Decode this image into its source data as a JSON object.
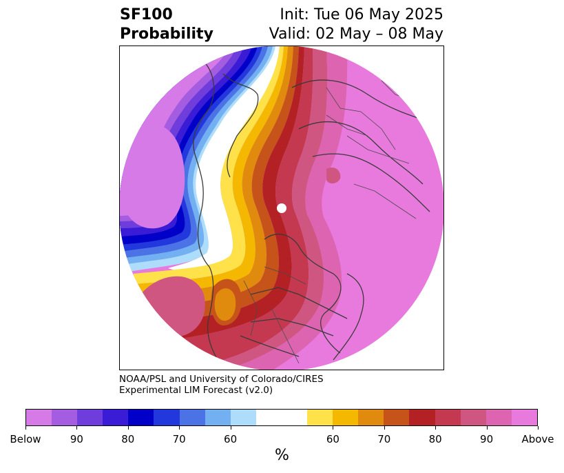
{
  "title": {
    "product": "SF100",
    "subtitle": "Probability",
    "init": "Init: Tue 06 May 2025",
    "valid": "Valid: 02 May – 08 May"
  },
  "credit": {
    "line1": "NOAA/PSL and University of Colorado/CIRES",
    "line2": "Experimental LIM Forecast (v2.0)"
  },
  "colorbar": {
    "colors": [
      "#d67ae8",
      "#a45ce0",
      "#6e3ddc",
      "#3a1bd6",
      "#0000c8",
      "#2338dc",
      "#4b73e6",
      "#73b0f2",
      "#aedcfb",
      "#ffffff",
      "#ffffff",
      "#ffe24a",
      "#f5b800",
      "#e08a0e",
      "#c6531a",
      "#b32124",
      "#c4394f",
      "#d05682",
      "#dd64b0",
      "#e87ade"
    ],
    "tick_labels": [
      "Below",
      "90",
      "80",
      "70",
      "60",
      "60",
      "70",
      "80",
      "90",
      "Above"
    ],
    "units": "%"
  },
  "map": {
    "projection": "north-polar-stereographic",
    "background_category": "Above",
    "regions": [
      {
        "name": "north-pacific-below",
        "category": "Below 80-90"
      },
      {
        "name": "west-coast-above",
        "category": "Above 60-90"
      },
      {
        "name": "eurasia-arctic-above",
        "category": "Above"
      }
    ]
  }
}
